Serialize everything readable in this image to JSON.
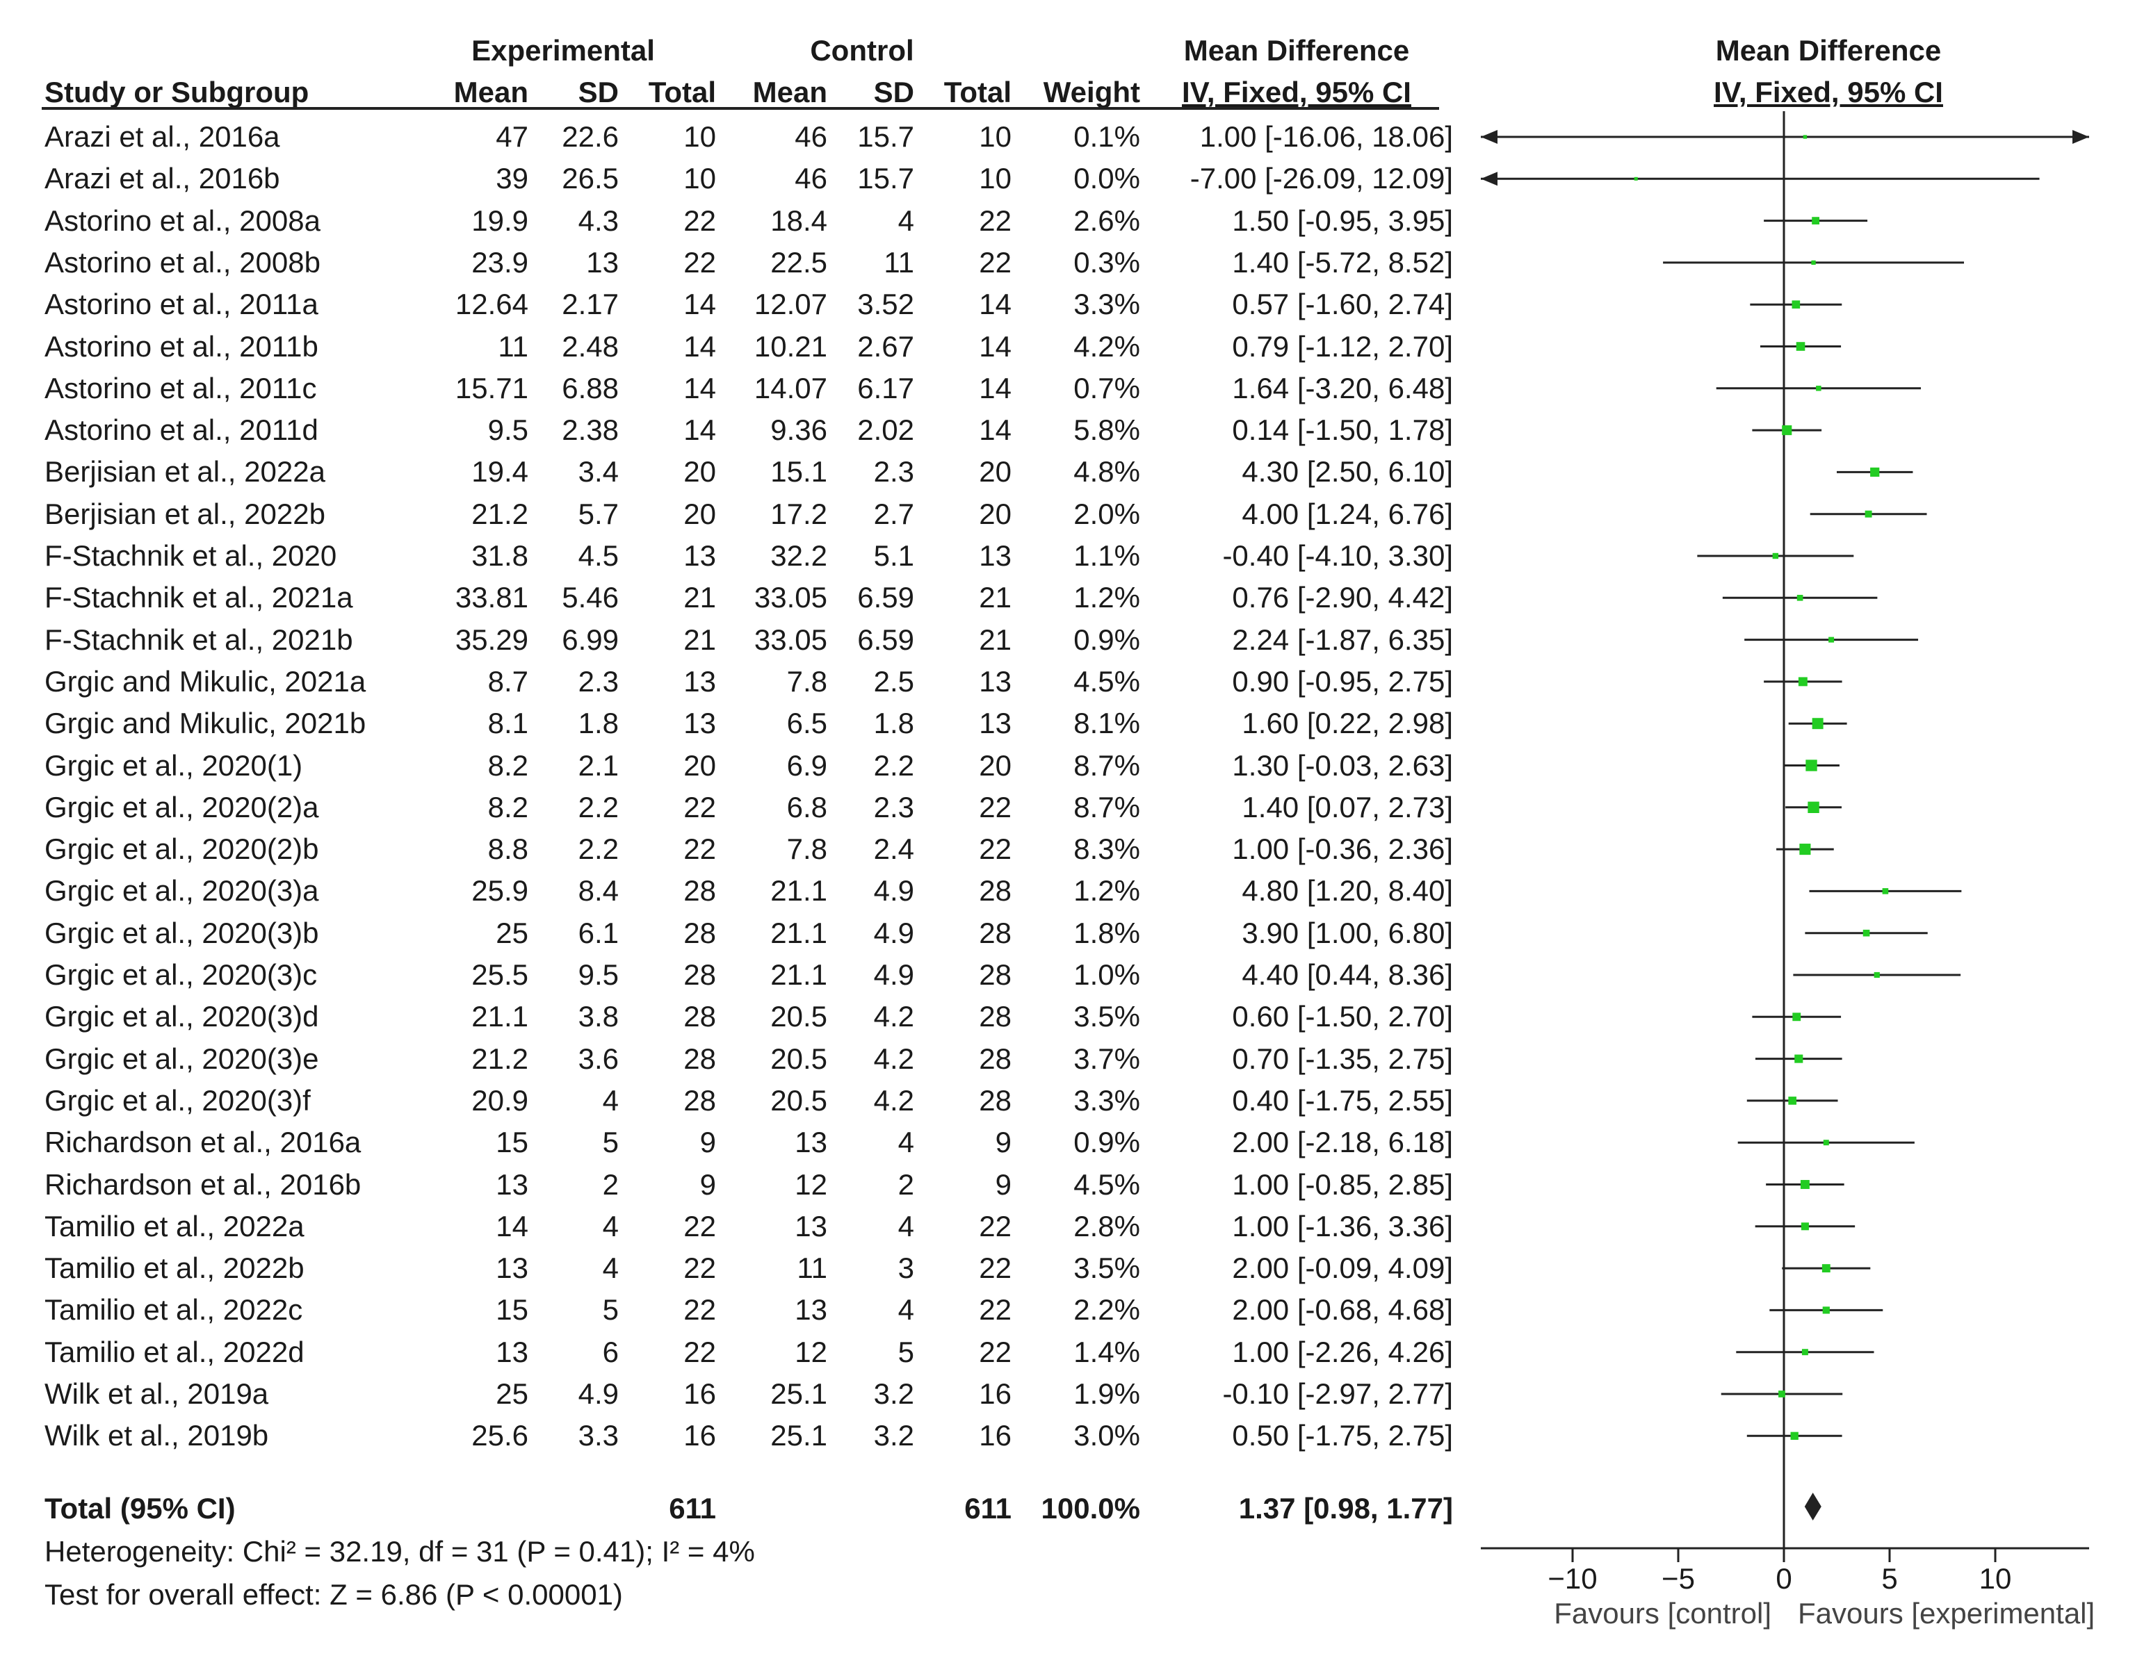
{
  "headers": {
    "group_experimental": "Experimental",
    "group_control": "Control",
    "group_md_table": "Mean Difference",
    "group_md_plot": "Mean Difference",
    "study": "Study or Subgroup",
    "mean": "Mean",
    "sd": "SD",
    "total": "Total",
    "weight": "Weight",
    "method_table": "IV, Fixed, 95% CI",
    "method_plot": "IV, Fixed, 95% CI"
  },
  "rows": [
    {
      "study": "Arazi et al., 2016a",
      "e_mean": "47",
      "e_sd": "22.6",
      "e_total": "10",
      "c_mean": "46",
      "c_sd": "15.7",
      "c_total": "10",
      "weight": "0.1%",
      "ci_text": "1.00 [-16.06, 18.06]"
    },
    {
      "study": "Arazi et al., 2016b",
      "e_mean": "39",
      "e_sd": "26.5",
      "e_total": "10",
      "c_mean": "46",
      "c_sd": "15.7",
      "c_total": "10",
      "weight": "0.0%",
      "ci_text": "-7.00 [-26.09, 12.09]"
    },
    {
      "study": "Astorino et al., 2008a",
      "e_mean": "19.9",
      "e_sd": "4.3",
      "e_total": "22",
      "c_mean": "18.4",
      "c_sd": "4",
      "c_total": "22",
      "weight": "2.6%",
      "ci_text": "1.50 [-0.95, 3.95]"
    },
    {
      "study": "Astorino et al., 2008b",
      "e_mean": "23.9",
      "e_sd": "13",
      "e_total": "22",
      "c_mean": "22.5",
      "c_sd": "11",
      "c_total": "22",
      "weight": "0.3%",
      "ci_text": "1.40 [-5.72, 8.52]"
    },
    {
      "study": "Astorino et al., 2011a",
      "e_mean": "12.64",
      "e_sd": "2.17",
      "e_total": "14",
      "c_mean": "12.07",
      "c_sd": "3.52",
      "c_total": "14",
      "weight": "3.3%",
      "ci_text": "0.57 [-1.60, 2.74]"
    },
    {
      "study": "Astorino et al., 2011b",
      "e_mean": "11",
      "e_sd": "2.48",
      "e_total": "14",
      "c_mean": "10.21",
      "c_sd": "2.67",
      "c_total": "14",
      "weight": "4.2%",
      "ci_text": "0.79 [-1.12, 2.70]"
    },
    {
      "study": "Astorino et al., 2011c",
      "e_mean": "15.71",
      "e_sd": "6.88",
      "e_total": "14",
      "c_mean": "14.07",
      "c_sd": "6.17",
      "c_total": "14",
      "weight": "0.7%",
      "ci_text": "1.64 [-3.20, 6.48]"
    },
    {
      "study": "Astorino et al., 2011d",
      "e_mean": "9.5",
      "e_sd": "2.38",
      "e_total": "14",
      "c_mean": "9.36",
      "c_sd": "2.02",
      "c_total": "14",
      "weight": "5.8%",
      "ci_text": "0.14 [-1.50, 1.78]"
    },
    {
      "study": "Berjisian et al., 2022a",
      "e_mean": "19.4",
      "e_sd": "3.4",
      "e_total": "20",
      "c_mean": "15.1",
      "c_sd": "2.3",
      "c_total": "20",
      "weight": "4.8%",
      "ci_text": "4.30 [2.50, 6.10]"
    },
    {
      "study": "Berjisian et al., 2022b",
      "e_mean": "21.2",
      "e_sd": "5.7",
      "e_total": "20",
      "c_mean": "17.2",
      "c_sd": "2.7",
      "c_total": "20",
      "weight": "2.0%",
      "ci_text": "4.00 [1.24, 6.76]"
    },
    {
      "study": "F-Stachnik et al., 2020",
      "e_mean": "31.8",
      "e_sd": "4.5",
      "e_total": "13",
      "c_mean": "32.2",
      "c_sd": "5.1",
      "c_total": "13",
      "weight": "1.1%",
      "ci_text": "-0.40 [-4.10, 3.30]"
    },
    {
      "study": "F-Stachnik et al., 2021a",
      "e_mean": "33.81",
      "e_sd": "5.46",
      "e_total": "21",
      "c_mean": "33.05",
      "c_sd": "6.59",
      "c_total": "21",
      "weight": "1.2%",
      "ci_text": "0.76 [-2.90, 4.42]"
    },
    {
      "study": "F-Stachnik et al., 2021b",
      "e_mean": "35.29",
      "e_sd": "6.99",
      "e_total": "21",
      "c_mean": "33.05",
      "c_sd": "6.59",
      "c_total": "21",
      "weight": "0.9%",
      "ci_text": "2.24 [-1.87, 6.35]"
    },
    {
      "study": "Grgic and Mikulic, 2021a",
      "e_mean": "8.7",
      "e_sd": "2.3",
      "e_total": "13",
      "c_mean": "7.8",
      "c_sd": "2.5",
      "c_total": "13",
      "weight": "4.5%",
      "ci_text": "0.90 [-0.95, 2.75]"
    },
    {
      "study": "Grgic and Mikulic, 2021b",
      "e_mean": "8.1",
      "e_sd": "1.8",
      "e_total": "13",
      "c_mean": "6.5",
      "c_sd": "1.8",
      "c_total": "13",
      "weight": "8.1%",
      "ci_text": "1.60 [0.22, 2.98]"
    },
    {
      "study": "Grgic et al., 2020(1)",
      "e_mean": "8.2",
      "e_sd": "2.1",
      "e_total": "20",
      "c_mean": "6.9",
      "c_sd": "2.2",
      "c_total": "20",
      "weight": "8.7%",
      "ci_text": "1.30 [-0.03, 2.63]"
    },
    {
      "study": "Grgic et al., 2020(2)a",
      "e_mean": "8.2",
      "e_sd": "2.2",
      "e_total": "22",
      "c_mean": "6.8",
      "c_sd": "2.3",
      "c_total": "22",
      "weight": "8.7%",
      "ci_text": "1.40 [0.07, 2.73]"
    },
    {
      "study": "Grgic et al., 2020(2)b",
      "e_mean": "8.8",
      "e_sd": "2.2",
      "e_total": "22",
      "c_mean": "7.8",
      "c_sd": "2.4",
      "c_total": "22",
      "weight": "8.3%",
      "ci_text": "1.00 [-0.36, 2.36]"
    },
    {
      "study": "Grgic et al., 2020(3)a",
      "e_mean": "25.9",
      "e_sd": "8.4",
      "e_total": "28",
      "c_mean": "21.1",
      "c_sd": "4.9",
      "c_total": "28",
      "weight": "1.2%",
      "ci_text": "4.80 [1.20, 8.40]"
    },
    {
      "study": "Grgic et al., 2020(3)b",
      "e_mean": "25",
      "e_sd": "6.1",
      "e_total": "28",
      "c_mean": "21.1",
      "c_sd": "4.9",
      "c_total": "28",
      "weight": "1.8%",
      "ci_text": "3.90 [1.00, 6.80]"
    },
    {
      "study": "Grgic et al., 2020(3)c",
      "e_mean": "25.5",
      "e_sd": "9.5",
      "e_total": "28",
      "c_mean": "21.1",
      "c_sd": "4.9",
      "c_total": "28",
      "weight": "1.0%",
      "ci_text": "4.40 [0.44, 8.36]"
    },
    {
      "study": "Grgic et al., 2020(3)d",
      "e_mean": "21.1",
      "e_sd": "3.8",
      "e_total": "28",
      "c_mean": "20.5",
      "c_sd": "4.2",
      "c_total": "28",
      "weight": "3.5%",
      "ci_text": "0.60 [-1.50, 2.70]"
    },
    {
      "study": "Grgic et al., 2020(3)e",
      "e_mean": "21.2",
      "e_sd": "3.6",
      "e_total": "28",
      "c_mean": "20.5",
      "c_sd": "4.2",
      "c_total": "28",
      "weight": "3.7%",
      "ci_text": "0.70 [-1.35, 2.75]"
    },
    {
      "study": "Grgic et al., 2020(3)f",
      "e_mean": "20.9",
      "e_sd": "4",
      "e_total": "28",
      "c_mean": "20.5",
      "c_sd": "4.2",
      "c_total": "28",
      "weight": "3.3%",
      "ci_text": "0.40 [-1.75, 2.55]"
    },
    {
      "study": "Richardson et al., 2016a",
      "e_mean": "15",
      "e_sd": "5",
      "e_total": "9",
      "c_mean": "13",
      "c_sd": "4",
      "c_total": "9",
      "weight": "0.9%",
      "ci_text": "2.00 [-2.18, 6.18]"
    },
    {
      "study": "Richardson et al., 2016b",
      "e_mean": "13",
      "e_sd": "2",
      "e_total": "9",
      "c_mean": "12",
      "c_sd": "2",
      "c_total": "9",
      "weight": "4.5%",
      "ci_text": "1.00 [-0.85, 2.85]"
    },
    {
      "study": "Tamilio et al., 2022a",
      "e_mean": "14",
      "e_sd": "4",
      "e_total": "22",
      "c_mean": "13",
      "c_sd": "4",
      "c_total": "22",
      "weight": "2.8%",
      "ci_text": "1.00 [-1.36, 3.36]"
    },
    {
      "study": "Tamilio et al., 2022b",
      "e_mean": "13",
      "e_sd": "4",
      "e_total": "22",
      "c_mean": "11",
      "c_sd": "3",
      "c_total": "22",
      "weight": "3.5%",
      "ci_text": "2.00 [-0.09, 4.09]"
    },
    {
      "study": "Tamilio et al., 2022c",
      "e_mean": "15",
      "e_sd": "5",
      "e_total": "22",
      "c_mean": "13",
      "c_sd": "4",
      "c_total": "22",
      "weight": "2.2%",
      "ci_text": "2.00 [-0.68, 4.68]"
    },
    {
      "study": "Tamilio et al., 2022d",
      "e_mean": "13",
      "e_sd": "6",
      "e_total": "22",
      "c_mean": "12",
      "c_sd": "5",
      "c_total": "22",
      "weight": "1.4%",
      "ci_text": "1.00 [-2.26, 4.26]"
    },
    {
      "study": "Wilk et al., 2019a",
      "e_mean": "25",
      "e_sd": "4.9",
      "e_total": "16",
      "c_mean": "25.1",
      "c_sd": "3.2",
      "c_total": "16",
      "weight": "1.9%",
      "ci_text": "-0.10 [-2.97, 2.77]"
    },
    {
      "study": "Wilk et al., 2019b",
      "e_mean": "25.6",
      "e_sd": "3.3",
      "e_total": "16",
      "c_mean": "25.1",
      "c_sd": "3.2",
      "c_total": "16",
      "weight": "3.0%",
      "ci_text": "0.50 [-1.75, 2.75]"
    }
  ],
  "total": {
    "label": "Total (95% CI)",
    "e_total": "611",
    "c_total": "611",
    "weight": "100.0%",
    "ci_text": "1.37 [0.98, 1.77]"
  },
  "footnotes": {
    "heterogeneity": "Heterogeneity: Chi² = 32.19, df = 31 (P = 0.41); I² = 4%",
    "overall": "Test for overall effect: Z = 6.86 (P < 0.00001)"
  },
  "colors": {
    "point": "#22cc22",
    "line": "#222222",
    "text": "#1a1a1a"
  },
  "chart_data": {
    "type": "forest",
    "xlim": [
      -14,
      14
    ],
    "ticks": [
      -10,
      -5,
      0,
      5,
      10
    ],
    "tick_labels": [
      "−10",
      "−5",
      "0",
      "5",
      "10"
    ],
    "favours_left": "Favours [control]",
    "favours_right": "Favours [experimental]",
    "studies": [
      {
        "md": 1.0,
        "lo": -16.06,
        "hi": 18.06
      },
      {
        "md": -7.0,
        "lo": -26.09,
        "hi": 12.09
      },
      {
        "md": 1.5,
        "lo": -0.95,
        "hi": 3.95
      },
      {
        "md": 1.4,
        "lo": -5.72,
        "hi": 8.52
      },
      {
        "md": 0.57,
        "lo": -1.6,
        "hi": 2.74
      },
      {
        "md": 0.79,
        "lo": -1.12,
        "hi": 2.7
      },
      {
        "md": 1.64,
        "lo": -3.2,
        "hi": 6.48
      },
      {
        "md": 0.14,
        "lo": -1.5,
        "hi": 1.78
      },
      {
        "md": 4.3,
        "lo": 2.5,
        "hi": 6.1
      },
      {
        "md": 4.0,
        "lo": 1.24,
        "hi": 6.76
      },
      {
        "md": -0.4,
        "lo": -4.1,
        "hi": 3.3
      },
      {
        "md": 0.76,
        "lo": -2.9,
        "hi": 4.42
      },
      {
        "md": 2.24,
        "lo": -1.87,
        "hi": 6.35
      },
      {
        "md": 0.9,
        "lo": -0.95,
        "hi": 2.75
      },
      {
        "md": 1.6,
        "lo": 0.22,
        "hi": 2.98
      },
      {
        "md": 1.3,
        "lo": -0.03,
        "hi": 2.63
      },
      {
        "md": 1.4,
        "lo": 0.07,
        "hi": 2.73
      },
      {
        "md": 1.0,
        "lo": -0.36,
        "hi": 2.36
      },
      {
        "md": 4.8,
        "lo": 1.2,
        "hi": 8.4
      },
      {
        "md": 3.9,
        "lo": 1.0,
        "hi": 6.8
      },
      {
        "md": 4.4,
        "lo": 0.44,
        "hi": 8.36
      },
      {
        "md": 0.6,
        "lo": -1.5,
        "hi": 2.7
      },
      {
        "md": 0.7,
        "lo": -1.35,
        "hi": 2.75
      },
      {
        "md": 0.4,
        "lo": -1.75,
        "hi": 2.55
      },
      {
        "md": 2.0,
        "lo": -2.18,
        "hi": 6.18
      },
      {
        "md": 1.0,
        "lo": -0.85,
        "hi": 2.85
      },
      {
        "md": 1.0,
        "lo": -1.36,
        "hi": 3.36
      },
      {
        "md": 2.0,
        "lo": -0.09,
        "hi": 4.09
      },
      {
        "md": 2.0,
        "lo": -0.68,
        "hi": 4.68
      },
      {
        "md": 1.0,
        "lo": -2.26,
        "hi": 4.26
      },
      {
        "md": -0.1,
        "lo": -2.97,
        "hi": 2.77
      },
      {
        "md": 0.5,
        "lo": -1.75,
        "hi": 2.75
      }
    ],
    "weights": [
      0.1,
      0.0,
      2.6,
      0.3,
      3.3,
      4.2,
      0.7,
      5.8,
      4.8,
      2.0,
      1.1,
      1.2,
      0.9,
      4.5,
      8.1,
      8.7,
      8.7,
      8.3,
      1.2,
      1.8,
      1.0,
      3.5,
      3.7,
      3.3,
      0.9,
      4.5,
      2.8,
      3.5,
      2.2,
      1.4,
      1.9,
      3.0
    ],
    "pooled": {
      "md": 1.37,
      "lo": 0.98,
      "hi": 1.77
    }
  }
}
